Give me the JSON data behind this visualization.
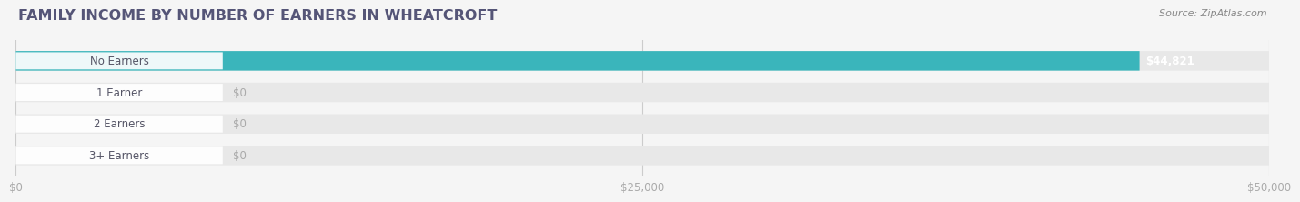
{
  "title": "FAMILY INCOME BY NUMBER OF EARNERS IN WHEATCROFT",
  "source": "Source: ZipAtlas.com",
  "categories": [
    "No Earners",
    "1 Earner",
    "2 Earners",
    "3+ Earners"
  ],
  "values": [
    44821,
    0,
    0,
    0
  ],
  "bar_colors": [
    "#3ab5bb",
    "#b3b3d9",
    "#f4a0b5",
    "#f5c992"
  ],
  "label_colors": [
    "#3ab5bb",
    "#b0b0d8",
    "#f4a0b5",
    "#f5c992"
  ],
  "xlim": [
    0,
    50000
  ],
  "xticks": [
    0,
    25000,
    50000
  ],
  "xticklabels": [
    "$0",
    "$25,000",
    "$50,000"
  ],
  "bg_color": "#f5f5f5",
  "bar_bg_color": "#e8e8e8",
  "value_label_44821": "$44,821",
  "value_label_0": "$0",
  "title_color": "#555577",
  "source_color": "#888888",
  "tick_color": "#aaaaaa"
}
